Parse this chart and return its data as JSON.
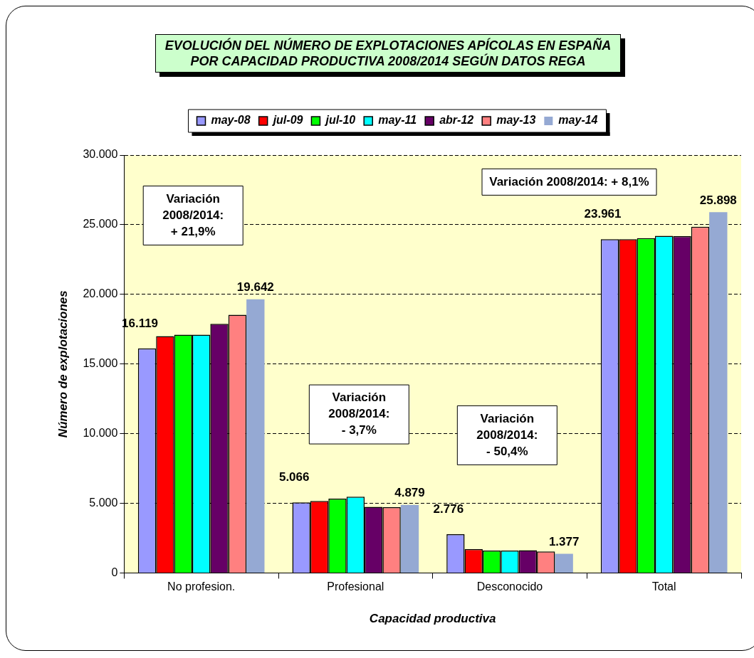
{
  "chart_data": {
    "type": "bar",
    "title": "EVOLUCIÓN DEL NÚMERO DE EXPLOTACIONES APÍCOLAS EN ESPAÑA POR CAPACIDAD PRODUCTIVA 2008/2014 SEGÚN DATOS REGA",
    "xlabel": "Capacidad productiva",
    "ylabel": "Número de explotaciones",
    "categories": [
      "No profesion.",
      "Profesional",
      "Desconocido",
      "Total"
    ],
    "series": [
      {
        "name": "may-08",
        "color": "#9999ff",
        "values": [
          16119,
          5066,
          2776,
          23961
        ],
        "value_labels": [
          "16.119",
          "5.066",
          "2.776",
          "23.961"
        ]
      },
      {
        "name": "jul-09",
        "color": "#ff0000",
        "values": [
          17000,
          5160,
          1710,
          23960
        ]
      },
      {
        "name": "jul-10",
        "color": "#00ff00",
        "values": [
          17100,
          5330,
          1610,
          24040
        ]
      },
      {
        "name": "may-11",
        "color": "#00ffff",
        "values": [
          17100,
          5470,
          1610,
          24200
        ]
      },
      {
        "name": "abr-12",
        "color": "#660066",
        "values": [
          17880,
          4740,
          1630,
          24180
        ]
      },
      {
        "name": "may-13",
        "color": "#ff8080",
        "values": [
          18530,
          4720,
          1540,
          24860
        ]
      },
      {
        "name": "may-14",
        "color": "#95a9d3",
        "values": [
          19642,
          4879,
          1377,
          25898
        ],
        "value_labels": [
          "19.642",
          "4.879",
          "1.377",
          "25.898"
        ]
      }
    ],
    "ylim": [
      0,
      30000
    ],
    "yticks": [
      {
        "value": 0,
        "label": "0"
      },
      {
        "value": 5000,
        "label": "5.000"
      },
      {
        "value": 10000,
        "label": "10.000"
      },
      {
        "value": 15000,
        "label": "15.000"
      },
      {
        "value": 20000,
        "label": "20.000"
      },
      {
        "value": 25000,
        "label": "25.000"
      },
      {
        "value": 30000,
        "label": "30.000"
      }
    ],
    "grid": "y",
    "legend": "top",
    "annotations": [
      "Variación 2008/2014: + 21,9%",
      "Variación 2008/2014: - 3,7%",
      "Variación 2008/2014: - 50,4%",
      "Variación 2008/2014: + 8,1%"
    ]
  }
}
